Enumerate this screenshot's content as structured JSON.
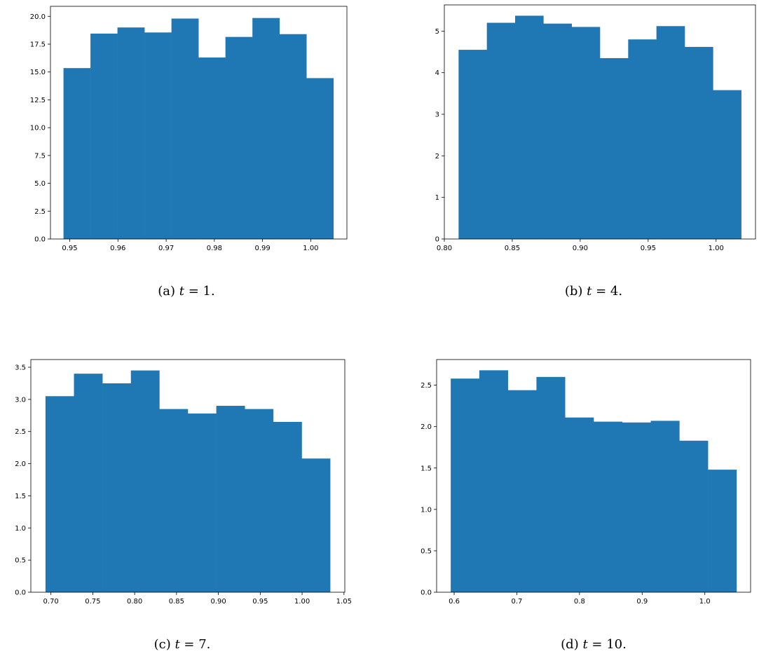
{
  "chart_data": [
    {
      "type": "bar",
      "panel": "a",
      "caption": {
        "prefix": "(a)",
        "var": "t",
        "eq": " = 1."
      },
      "color": "#1f77b4",
      "bin_edges": [
        0.9487,
        0.9543,
        0.9599,
        0.9655,
        0.9711,
        0.9767,
        0.9823,
        0.9879,
        0.9935,
        0.9991,
        1.0047
      ],
      "values": [
        15.35,
        18.45,
        19.0,
        18.55,
        19.8,
        16.3,
        18.15,
        19.85,
        18.4,
        14.45
      ],
      "xlim": [
        0.946,
        1.0075
      ],
      "ylim": [
        0,
        20.9
      ],
      "xticks": [
        0.95,
        0.96,
        0.97,
        0.98,
        0.99,
        1.0
      ],
      "xtick_labels": [
        "0.95",
        "0.96",
        "0.97",
        "0.98",
        "0.99",
        "1.00"
      ],
      "yticks": [
        0,
        2.5,
        5,
        7.5,
        10,
        12.5,
        15,
        17.5,
        20
      ],
      "ytick_labels": [
        "0.0",
        "2.5",
        "5.0",
        "7.5",
        "10.0",
        "12.5",
        "15.0",
        "17.5",
        "20.0"
      ]
    },
    {
      "type": "bar",
      "panel": "b",
      "caption": {
        "prefix": "(b)",
        "var": "t",
        "eq": " = 4."
      },
      "color": "#1f77b4",
      "bin_edges": [
        0.8105,
        0.8313,
        0.8521,
        0.8729,
        0.8937,
        0.9145,
        0.9353,
        0.9561,
        0.9769,
        0.9977,
        1.0185
      ],
      "values": [
        4.55,
        5.2,
        5.37,
        5.18,
        5.1,
        4.35,
        4.8,
        5.12,
        4.62,
        3.58
      ],
      "xlim": [
        0.8,
        1.029
      ],
      "ylim": [
        0,
        5.63
      ],
      "xticks": [
        0.8,
        0.85,
        0.9,
        0.95,
        1.0
      ],
      "xtick_labels": [
        "0.80",
        "0.85",
        "0.90",
        "0.95",
        "1.00"
      ],
      "yticks": [
        0,
        1,
        2,
        3,
        4,
        5
      ],
      "ytick_labels": [
        "0",
        "1",
        "2",
        "3",
        "4",
        "5"
      ]
    },
    {
      "type": "bar",
      "panel": "c",
      "caption": {
        "prefix": "(c)",
        "var": "t",
        "eq": " = 7."
      },
      "color": "#1f77b4",
      "bin_edges": [
        0.6935,
        0.7275,
        0.7615,
        0.7955,
        0.8295,
        0.8635,
        0.8975,
        0.9315,
        0.9655,
        0.9995,
        1.0335
      ],
      "values": [
        3.05,
        3.4,
        3.25,
        3.45,
        2.85,
        2.78,
        2.9,
        2.85,
        2.65,
        2.08
      ],
      "xlim": [
        0.676,
        1.051
      ],
      "ylim": [
        0,
        3.62
      ],
      "xticks": [
        0.7,
        0.75,
        0.8,
        0.85,
        0.9,
        0.95,
        1.0,
        1.05
      ],
      "xtick_labels": [
        "0.70",
        "0.75",
        "0.80",
        "0.85",
        "0.90",
        "0.95",
        "1.00",
        "1.05"
      ],
      "yticks": [
        0,
        0.5,
        1,
        1.5,
        2,
        2.5,
        3,
        3.5
      ],
      "ytick_labels": [
        "0.0",
        "0.5",
        "1.0",
        "1.5",
        "2.0",
        "2.5",
        "3.0",
        "3.5"
      ]
    },
    {
      "type": "bar",
      "panel": "d",
      "caption": {
        "prefix": "(d)",
        "var": "t",
        "eq": " = 10."
      },
      "color": "#1f77b4",
      "bin_edges": [
        0.5945,
        0.6401,
        0.6857,
        0.7313,
        0.7769,
        0.8225,
        0.8681,
        0.9137,
        0.9593,
        1.0049,
        1.0505
      ],
      "values": [
        2.58,
        2.68,
        2.44,
        2.6,
        2.11,
        2.06,
        2.05,
        2.07,
        1.83,
        1.48
      ],
      "xlim": [
        0.572,
        1.073
      ],
      "ylim": [
        0,
        2.81
      ],
      "xticks": [
        0.6,
        0.7,
        0.8,
        0.9,
        1.0
      ],
      "xtick_labels": [
        "0.6",
        "0.7",
        "0.8",
        "0.9",
        "1.0"
      ],
      "yticks": [
        0,
        0.5,
        1,
        1.5,
        2,
        2.5
      ],
      "ytick_labels": [
        "0.0",
        "0.5",
        "1.0",
        "1.5",
        "2.0",
        "2.5"
      ]
    }
  ]
}
